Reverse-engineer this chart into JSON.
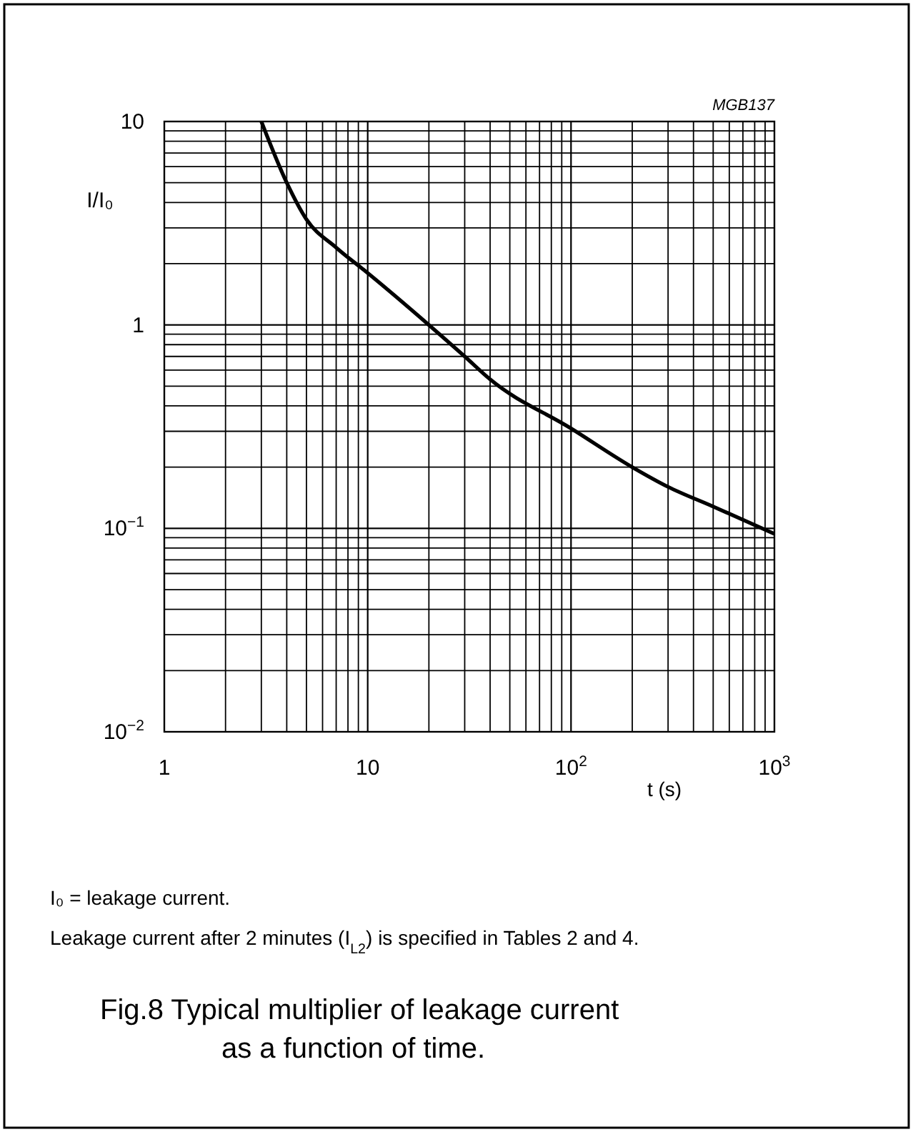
{
  "chart_data": {
    "type": "line",
    "title": "Fig.8    Typical multiplier of leakage current as a function of time.",
    "xlabel": "t (s)",
    "ylabel": "I/I₀",
    "annotations": [
      "MGB137",
      "I₀ = leakage current.",
      "Leakage current after 2 minutes (I$_{L2}$) is specified in Tables 2 and 4."
    ],
    "log": "xy",
    "grid": true,
    "xlim": [
      1,
      1000
    ],
    "ylim": [
      0.01,
      10
    ],
    "xticks": [
      1,
      10,
      {
        "value": 100,
        "label": "10$^{2}$"
      },
      {
        "value": 1000,
        "label": "10$^{3}$"
      }
    ],
    "yticks": [
      {
        "value": 0.01,
        "label": "10$^{−2}$"
      },
      {
        "value": 0.1,
        "label": "10$^{−1}$"
      },
      1,
      10
    ],
    "series": [
      {
        "color": "#000000",
        "line_style": "solid",
        "marker": "none",
        "x": [
          3,
          4,
          5,
          7,
          10,
          20,
          30,
          40,
          100,
          200,
          300,
          500,
          1000
        ],
        "values": [
          10,
          5,
          3.3,
          2.4,
          1.8,
          1,
          0.7,
          0.54,
          0.31,
          0.2,
          0.16,
          0.128,
          0.094
        ]
      }
    ]
  }
}
